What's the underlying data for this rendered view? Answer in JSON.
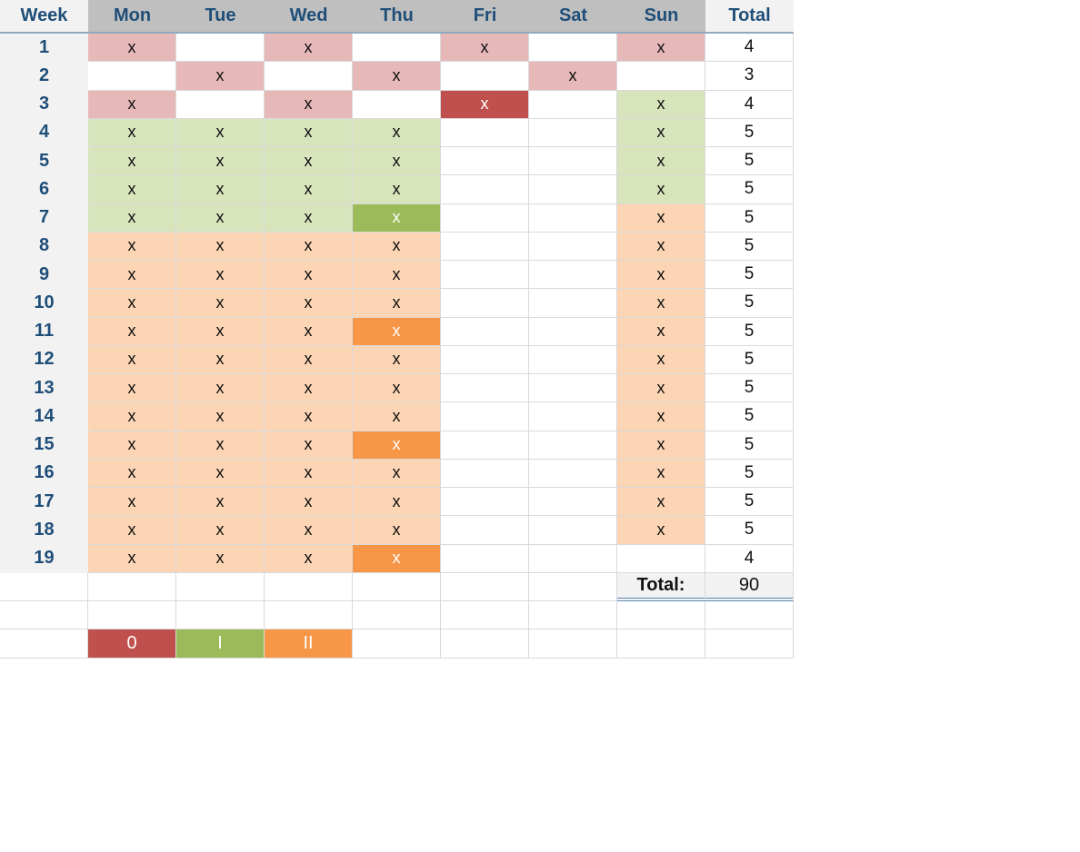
{
  "colors": {
    "pink": "#e6b9b8",
    "red": "#c0504d",
    "light_green": "#d7e4bc",
    "green": "#9bbb59",
    "peach": "#fcd5b4",
    "orange": "#f79646",
    "white": "#ffffff"
  },
  "headers": [
    "Week",
    "Mon",
    "Tue",
    "Wed",
    "Thu",
    "Fri",
    "Sat",
    "Sun",
    "Total"
  ],
  "weeks": [
    {
      "week": "1",
      "total": "4",
      "cells": [
        {
          "v": "x",
          "c": "pink"
        },
        {
          "v": "",
          "c": "white"
        },
        {
          "v": "x",
          "c": "pink"
        },
        {
          "v": "",
          "c": "white"
        },
        {
          "v": "x",
          "c": "pink"
        },
        {
          "v": "",
          "c": "white"
        },
        {
          "v": "x",
          "c": "pink"
        }
      ]
    },
    {
      "week": "2",
      "total": "3",
      "cells": [
        {
          "v": "",
          "c": "white"
        },
        {
          "v": "x",
          "c": "pink"
        },
        {
          "v": "",
          "c": "white"
        },
        {
          "v": "x",
          "c": "pink"
        },
        {
          "v": "",
          "c": "white"
        },
        {
          "v": "x",
          "c": "pink"
        },
        {
          "v": "",
          "c": "white"
        }
      ]
    },
    {
      "week": "3",
      "total": "4",
      "cells": [
        {
          "v": "x",
          "c": "pink"
        },
        {
          "v": "",
          "c": "white"
        },
        {
          "v": "x",
          "c": "pink"
        },
        {
          "v": "",
          "c": "white"
        },
        {
          "v": "x",
          "c": "red"
        },
        {
          "v": "",
          "c": "white"
        },
        {
          "v": "x",
          "c": "light_green"
        }
      ]
    },
    {
      "week": "4",
      "total": "5",
      "cells": [
        {
          "v": "x",
          "c": "light_green"
        },
        {
          "v": "x",
          "c": "light_green"
        },
        {
          "v": "x",
          "c": "light_green"
        },
        {
          "v": "x",
          "c": "light_green"
        },
        {
          "v": "",
          "c": "white"
        },
        {
          "v": "",
          "c": "white"
        },
        {
          "v": "x",
          "c": "light_green"
        }
      ]
    },
    {
      "week": "5",
      "total": "5",
      "cells": [
        {
          "v": "x",
          "c": "light_green"
        },
        {
          "v": "x",
          "c": "light_green"
        },
        {
          "v": "x",
          "c": "light_green"
        },
        {
          "v": "x",
          "c": "light_green"
        },
        {
          "v": "",
          "c": "white"
        },
        {
          "v": "",
          "c": "white"
        },
        {
          "v": "x",
          "c": "light_green"
        }
      ]
    },
    {
      "week": "6",
      "total": "5",
      "cells": [
        {
          "v": "x",
          "c": "light_green"
        },
        {
          "v": "x",
          "c": "light_green"
        },
        {
          "v": "x",
          "c": "light_green"
        },
        {
          "v": "x",
          "c": "light_green"
        },
        {
          "v": "",
          "c": "white"
        },
        {
          "v": "",
          "c": "white"
        },
        {
          "v": "x",
          "c": "light_green"
        }
      ]
    },
    {
      "week": "7",
      "total": "5",
      "cells": [
        {
          "v": "x",
          "c": "light_green"
        },
        {
          "v": "x",
          "c": "light_green"
        },
        {
          "v": "x",
          "c": "light_green"
        },
        {
          "v": "x",
          "c": "green"
        },
        {
          "v": "",
          "c": "white"
        },
        {
          "v": "",
          "c": "white"
        },
        {
          "v": "x",
          "c": "peach"
        }
      ]
    },
    {
      "week": "8",
      "total": "5",
      "cells": [
        {
          "v": "x",
          "c": "peach"
        },
        {
          "v": "x",
          "c": "peach"
        },
        {
          "v": "x",
          "c": "peach"
        },
        {
          "v": "x",
          "c": "peach"
        },
        {
          "v": "",
          "c": "white"
        },
        {
          "v": "",
          "c": "white"
        },
        {
          "v": "x",
          "c": "peach"
        }
      ]
    },
    {
      "week": "9",
      "total": "5",
      "cells": [
        {
          "v": "x",
          "c": "peach"
        },
        {
          "v": "x",
          "c": "peach"
        },
        {
          "v": "x",
          "c": "peach"
        },
        {
          "v": "x",
          "c": "peach"
        },
        {
          "v": "",
          "c": "white"
        },
        {
          "v": "",
          "c": "white"
        },
        {
          "v": "x",
          "c": "peach"
        }
      ]
    },
    {
      "week": "10",
      "total": "5",
      "cells": [
        {
          "v": "x",
          "c": "peach"
        },
        {
          "v": "x",
          "c": "peach"
        },
        {
          "v": "x",
          "c": "peach"
        },
        {
          "v": "x",
          "c": "peach"
        },
        {
          "v": "",
          "c": "white"
        },
        {
          "v": "",
          "c": "white"
        },
        {
          "v": "x",
          "c": "peach"
        }
      ]
    },
    {
      "week": "11",
      "total": "5",
      "cells": [
        {
          "v": "x",
          "c": "peach"
        },
        {
          "v": "x",
          "c": "peach"
        },
        {
          "v": "x",
          "c": "peach"
        },
        {
          "v": "x",
          "c": "orange"
        },
        {
          "v": "",
          "c": "white"
        },
        {
          "v": "",
          "c": "white"
        },
        {
          "v": "x",
          "c": "peach"
        }
      ]
    },
    {
      "week": "12",
      "total": "5",
      "cells": [
        {
          "v": "x",
          "c": "peach"
        },
        {
          "v": "x",
          "c": "peach"
        },
        {
          "v": "x",
          "c": "peach"
        },
        {
          "v": "x",
          "c": "peach"
        },
        {
          "v": "",
          "c": "white"
        },
        {
          "v": "",
          "c": "white"
        },
        {
          "v": "x",
          "c": "peach"
        }
      ]
    },
    {
      "week": "13",
      "total": "5",
      "cells": [
        {
          "v": "x",
          "c": "peach"
        },
        {
          "v": "x",
          "c": "peach"
        },
        {
          "v": "x",
          "c": "peach"
        },
        {
          "v": "x",
          "c": "peach"
        },
        {
          "v": "",
          "c": "white"
        },
        {
          "v": "",
          "c": "white"
        },
        {
          "v": "x",
          "c": "peach"
        }
      ]
    },
    {
      "week": "14",
      "total": "5",
      "cells": [
        {
          "v": "x",
          "c": "peach"
        },
        {
          "v": "x",
          "c": "peach"
        },
        {
          "v": "x",
          "c": "peach"
        },
        {
          "v": "x",
          "c": "peach"
        },
        {
          "v": "",
          "c": "white"
        },
        {
          "v": "",
          "c": "white"
        },
        {
          "v": "x",
          "c": "peach"
        }
      ]
    },
    {
      "week": "15",
      "total": "5",
      "cells": [
        {
          "v": "x",
          "c": "peach"
        },
        {
          "v": "x",
          "c": "peach"
        },
        {
          "v": "x",
          "c": "peach"
        },
        {
          "v": "x",
          "c": "orange"
        },
        {
          "v": "",
          "c": "white"
        },
        {
          "v": "",
          "c": "white"
        },
        {
          "v": "x",
          "c": "peach"
        }
      ]
    },
    {
      "week": "16",
      "total": "5",
      "cells": [
        {
          "v": "x",
          "c": "peach"
        },
        {
          "v": "x",
          "c": "peach"
        },
        {
          "v": "x",
          "c": "peach"
        },
        {
          "v": "x",
          "c": "peach"
        },
        {
          "v": "",
          "c": "white"
        },
        {
          "v": "",
          "c": "white"
        },
        {
          "v": "x",
          "c": "peach"
        }
      ]
    },
    {
      "week": "17",
      "total": "5",
      "cells": [
        {
          "v": "x",
          "c": "peach"
        },
        {
          "v": "x",
          "c": "peach"
        },
        {
          "v": "x",
          "c": "peach"
        },
        {
          "v": "x",
          "c": "peach"
        },
        {
          "v": "",
          "c": "white"
        },
        {
          "v": "",
          "c": "white"
        },
        {
          "v": "x",
          "c": "peach"
        }
      ]
    },
    {
      "week": "18",
      "total": "5",
      "cells": [
        {
          "v": "x",
          "c": "peach"
        },
        {
          "v": "x",
          "c": "peach"
        },
        {
          "v": "x",
          "c": "peach"
        },
        {
          "v": "x",
          "c": "peach"
        },
        {
          "v": "",
          "c": "white"
        },
        {
          "v": "",
          "c": "white"
        },
        {
          "v": "x",
          "c": "peach"
        }
      ]
    },
    {
      "week": "19",
      "total": "4",
      "cells": [
        {
          "v": "x",
          "c": "peach"
        },
        {
          "v": "x",
          "c": "peach"
        },
        {
          "v": "x",
          "c": "peach"
        },
        {
          "v": "x",
          "c": "orange"
        },
        {
          "v": "",
          "c": "white"
        },
        {
          "v": "",
          "c": "white"
        },
        {
          "v": "",
          "c": "white"
        }
      ]
    }
  ],
  "grand_total": {
    "label": "Total:",
    "value": "90"
  },
  "legend": [
    {
      "label": "0",
      "c": "red"
    },
    {
      "label": "I",
      "c": "green"
    },
    {
      "label": "II",
      "c": "orange"
    }
  ]
}
